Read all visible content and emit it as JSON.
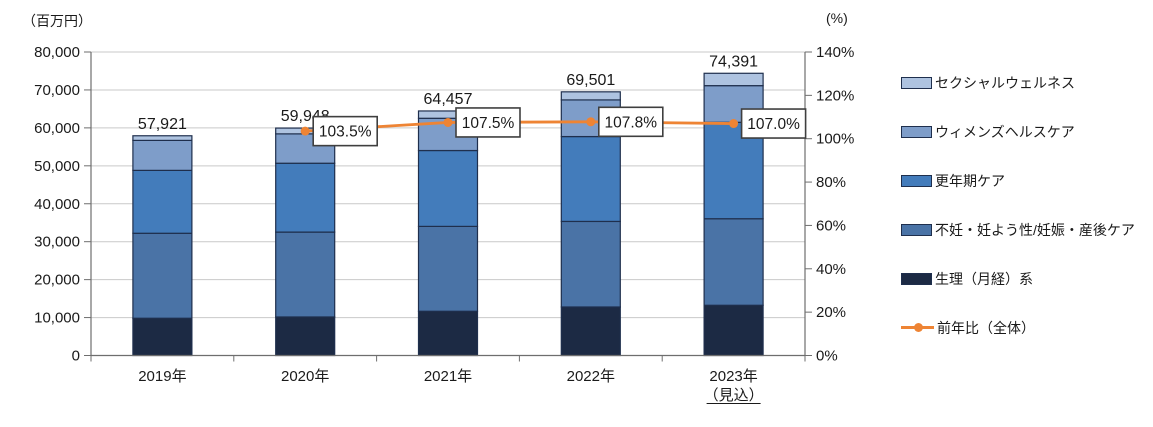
{
  "axis_titles": {
    "left": "（百万円）",
    "right": "(%)"
  },
  "chart_data": {
    "type": "bar",
    "variant": "stacked-column-with-yoy-line",
    "categories": [
      "2019年",
      "2020年",
      "2021年",
      "2022年",
      "2023年"
    ],
    "category_footnote": {
      "index": 4,
      "text": "（見込）",
      "underline": true
    },
    "left_axis": {
      "title": "（百万円）",
      "min": 0,
      "max": 80000,
      "step": 10000,
      "tick_labels": [
        "0",
        "10,000",
        "20,000",
        "30,000",
        "40,000",
        "50,000",
        "60,000",
        "70,000",
        "80,000"
      ]
    },
    "right_axis": {
      "title": "(%)",
      "min": 0,
      "max": 140,
      "step": 20,
      "tick_labels": [
        "0%",
        "20%",
        "40%",
        "60%",
        "80%",
        "100%",
        "120%",
        "140%"
      ]
    },
    "series": [
      {
        "name": "生理（月経）系",
        "color": "#1C2A44",
        "values": [
          9820,
          10160,
          11660,
          12790,
          13240
        ]
      },
      {
        "name": "不妊・妊よう性/妊娠・産後ケア",
        "color": "#4A73A6",
        "values": [
          22400,
          22370,
          22370,
          22550,
          22810
        ]
      },
      {
        "name": "更年期ケア",
        "color": "#437CBB",
        "values": [
          16580,
          18150,
          20000,
          22370,
          25420
        ]
      },
      {
        "name": "ウィメンズヘルスケア",
        "color": "#7E9DC9",
        "values": [
          7900,
          7740,
          8500,
          9660,
          9660
        ]
      },
      {
        "name": "セクシャルウェルネス",
        "color": "#AEC3E0",
        "values": [
          1221,
          1528,
          1927,
          2131,
          3261
        ]
      }
    ],
    "totals": [
      57921,
      59948,
      64457,
      69501,
      74391
    ],
    "total_labels": [
      "57,921",
      "59,948",
      "64,457",
      "69,501",
      "74,391"
    ],
    "line_series": {
      "name": "前年比（全体）",
      "color": "#EE8434",
      "unit": "%",
      "values": [
        null,
        103.5,
        107.5,
        107.8,
        107.0
      ],
      "callout_labels": [
        null,
        "103.5%",
        "107.5%",
        "107.8%",
        "107.0%"
      ]
    },
    "legend": [
      {
        "label": "セクシャルウェルネス",
        "marker": "swatch",
        "color": "#AEC3E0"
      },
      {
        "label": "ウィメンズヘルスケア",
        "marker": "swatch",
        "color": "#7E9DC9"
      },
      {
        "label": "更年期ケア",
        "marker": "swatch",
        "color": "#437CBB"
      },
      {
        "label": "不妊・妊よう性/妊娠・産後ケア",
        "marker": "swatch",
        "color": "#4A73A6"
      },
      {
        "label": "生理（月経）系",
        "marker": "swatch",
        "color": "#1C2A44"
      },
      {
        "label": "前年比（全体）",
        "marker": "line",
        "color": "#EE8434"
      }
    ],
    "colors": {
      "gridline": "#C9C9C9",
      "axis": "#6E6E6E",
      "bar_border": "#1F2F4D",
      "callout_border": "#3F3F3F",
      "callout_fill": "#FFFFFF",
      "text": "#1A1A1A"
    },
    "legend_position": "right",
    "grid": "horizontal"
  }
}
